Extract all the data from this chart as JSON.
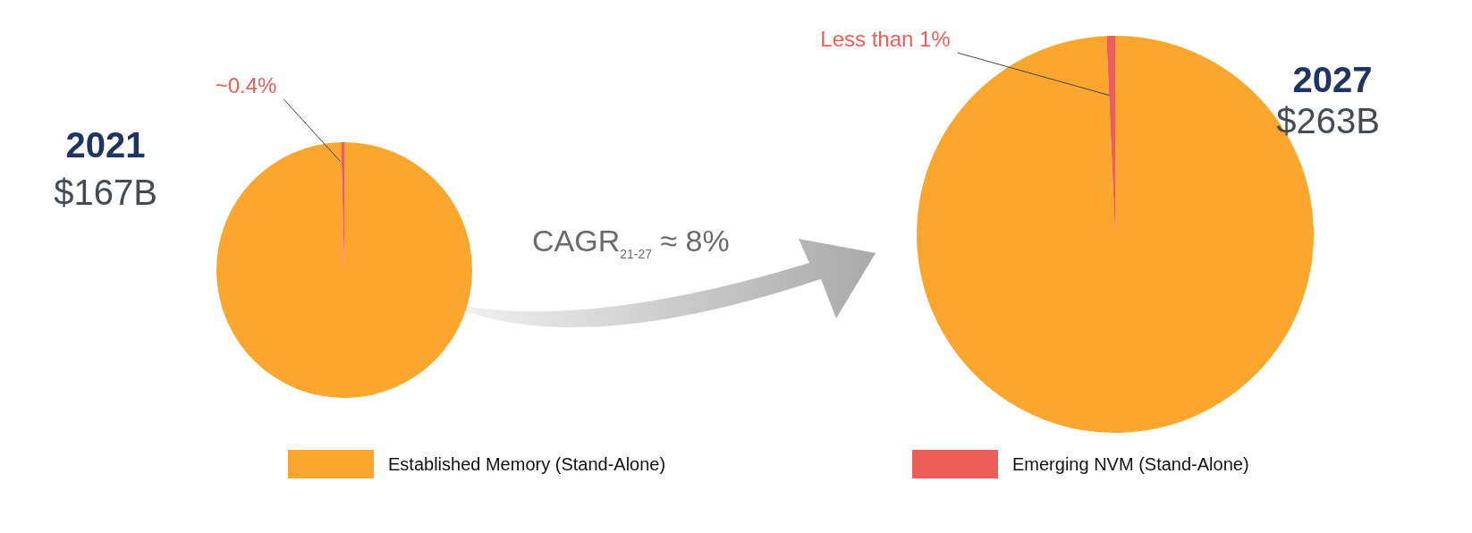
{
  "chart_data": [
    {
      "type": "pie",
      "title": "2021",
      "subtitle": "$167B",
      "categories": [
        "Established Memory (Stand-Alone)",
        "Emerging NVM (Stand-Alone)"
      ],
      "values": [
        99.6,
        0.4
      ],
      "colors": [
        "#fba72f",
        "#ec5f58"
      ],
      "annotations": [
        "~0.4%"
      ],
      "legend": "bottom"
    },
    {
      "type": "pie",
      "title": "2027",
      "subtitle": "$263B",
      "categories": [
        null,
        null
      ],
      "values": [
        99.3,
        0.7
      ],
      "colors": [
        "#fba72f",
        "#ec5f58"
      ],
      "annotations": [
        "Less than 1%",
        "CAGR$_{21-27}$ ≈ 8%"
      ]
    }
  ]
}
